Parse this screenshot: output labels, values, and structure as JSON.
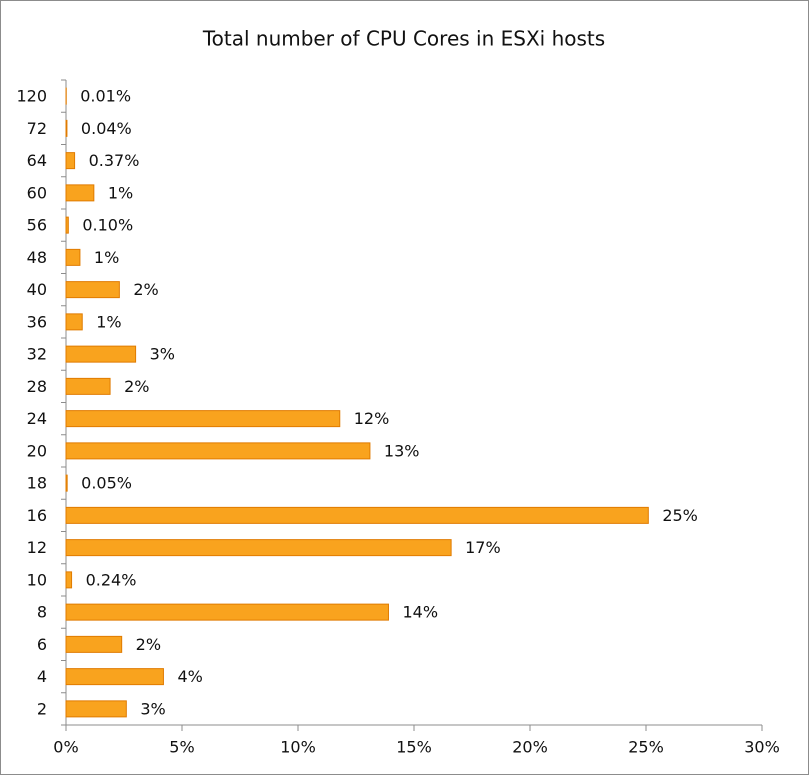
{
  "chart_data": {
    "type": "hbar",
    "title": "Total number of CPU Cores in ESXi hosts",
    "categories": [
      "2",
      "4",
      "6",
      "8",
      "10",
      "12",
      "16",
      "18",
      "20",
      "24",
      "28",
      "32",
      "36",
      "40",
      "48",
      "56",
      "60",
      "64",
      "72",
      "120"
    ],
    "values": [
      2.6,
      4.2,
      2.4,
      13.9,
      0.24,
      16.6,
      25.1,
      0.05,
      13.1,
      11.8,
      1.9,
      3.0,
      0.7,
      2.3,
      0.6,
      0.1,
      1.2,
      0.37,
      0.04,
      0.01
    ],
    "value_labels": [
      "3%",
      "4%",
      "2%",
      "14%",
      "0.24%",
      "17%",
      "25%",
      "0.05%",
      "13%",
      "12%",
      "2%",
      "3%",
      "1%",
      "2%",
      "1%",
      "0.10%",
      "1%",
      "0.37%",
      "0.04%",
      "0.01%"
    ],
    "color": "#f9a31e",
    "xlim": [
      0,
      30
    ],
    "xticks": [
      {
        "value": 0,
        "label": "0%"
      },
      {
        "value": 5,
        "label": "5%"
      },
      {
        "value": 10,
        "label": "10%"
      },
      {
        "value": 15,
        "label": "15%"
      },
      {
        "value": 20,
        "label": "20%"
      },
      {
        "value": 25,
        "label": "25%"
      },
      {
        "value": 30,
        "label": "30%"
      }
    ]
  }
}
